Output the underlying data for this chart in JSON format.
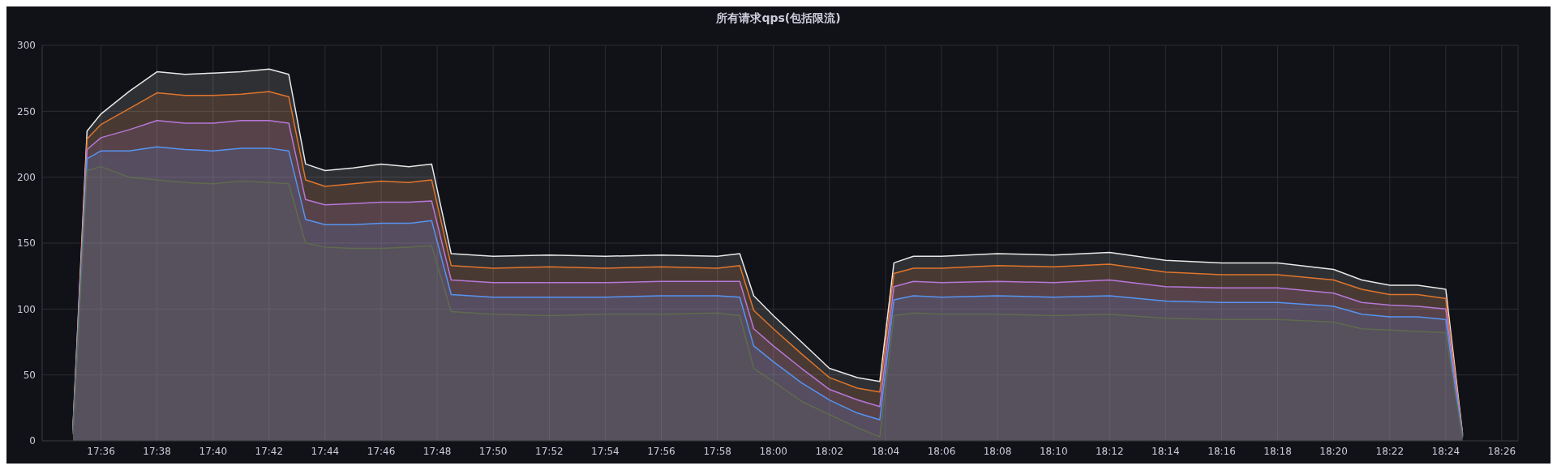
{
  "chart_data": {
    "type": "area",
    "title": "所有请求qps(包括限流)",
    "x": [
      17.5833,
      17.5917,
      17.6,
      17.6167,
      17.6333,
      17.65,
      17.6667,
      17.6833,
      17.7,
      17.7117,
      17.7217,
      17.7333,
      17.75,
      17.7667,
      17.7833,
      17.7967,
      17.8083,
      17.8333,
      17.8667,
      17.9,
      17.9333,
      17.9667,
      17.98,
      17.9883,
      18.0,
      18.0167,
      18.0333,
      18.05,
      18.0633,
      18.0717,
      18.0833,
      18.1,
      18.1333,
      18.1667,
      18.2,
      18.2333,
      18.2667,
      18.3,
      18.3333,
      18.35,
      18.3667,
      18.3833,
      18.4,
      18.405,
      18.41
    ],
    "series": [
      {
        "color": "#e8e8e8",
        "values": [
          10,
          235,
          248,
          265,
          280,
          278,
          279,
          280,
          282,
          278,
          210,
          205,
          207,
          210,
          208,
          210,
          142,
          140,
          141,
          140,
          141,
          140,
          142,
          110,
          95,
          75,
          55,
          48,
          45,
          135,
          140,
          140,
          142,
          141,
          143,
          137,
          135,
          135,
          130,
          122,
          118,
          118,
          115,
          60,
          5
        ]
      },
      {
        "color": "#e0752d",
        "values": [
          9,
          229,
          240,
          252,
          264,
          262,
          262,
          263,
          265,
          261,
          198,
          193,
          195,
          197,
          196,
          198,
          133,
          131,
          132,
          131,
          132,
          131,
          133,
          99,
          85,
          66,
          48,
          40,
          37,
          127,
          131,
          131,
          133,
          132,
          134,
          128,
          126,
          126,
          122,
          115,
          111,
          111,
          108,
          56,
          4
        ]
      },
      {
        "color": "#b877d9",
        "values": [
          8,
          221,
          230,
          236,
          243,
          241,
          241,
          243,
          243,
          241,
          183,
          179,
          180,
          181,
          181,
          182,
          122,
          120,
          120,
          120,
          121,
          121,
          121,
          85,
          72,
          55,
          39,
          31,
          26,
          117,
          121,
          120,
          121,
          120,
          122,
          117,
          116,
          116,
          112,
          105,
          103,
          102,
          100,
          51,
          4
        ]
      },
      {
        "color": "#5794f2",
        "values": [
          7,
          214,
          220,
          220,
          223,
          221,
          220,
          222,
          222,
          220,
          168,
          164,
          164,
          165,
          165,
          167,
          111,
          109,
          109,
          109,
          110,
          110,
          109,
          72,
          60,
          44,
          31,
          21,
          16,
          107,
          110,
          109,
          110,
          109,
          110,
          106,
          105,
          105,
          102,
          96,
          94,
          94,
          92,
          46,
          3
        ]
      },
      {
        "color": "#5f6b4e",
        "values": [
          5,
          205,
          208,
          200,
          198,
          196,
          195,
          197,
          196,
          195,
          150,
          147,
          146,
          146,
          147,
          148,
          98,
          96,
          95,
          96,
          96,
          97,
          95,
          55,
          45,
          30,
          20,
          10,
          3,
          95,
          97,
          96,
          96,
          95,
          96,
          93,
          92,
          92,
          90,
          85,
          84,
          83,
          82,
          40,
          2
        ]
      }
    ],
    "xlim": [
      17.565,
      18.443
    ],
    "xticks": [
      {
        "value": 17.6,
        "label": "17:36"
      },
      {
        "value": 17.6333,
        "label": "17:38"
      },
      {
        "value": 17.6667,
        "label": "17:40"
      },
      {
        "value": 17.7,
        "label": "17:42"
      },
      {
        "value": 17.7333,
        "label": "17:44"
      },
      {
        "value": 17.7667,
        "label": "17:46"
      },
      {
        "value": 17.8,
        "label": "17:48"
      },
      {
        "value": 17.8333,
        "label": "17:50"
      },
      {
        "value": 17.8667,
        "label": "17:52"
      },
      {
        "value": 17.9,
        "label": "17:54"
      },
      {
        "value": 17.9333,
        "label": "17:56"
      },
      {
        "value": 17.9667,
        "label": "17:58"
      },
      {
        "value": 18.0,
        "label": "18:00"
      },
      {
        "value": 18.0333,
        "label": "18:02"
      },
      {
        "value": 18.0667,
        "label": "18:04"
      },
      {
        "value": 18.1,
        "label": "18:06"
      },
      {
        "value": 18.1333,
        "label": "18:08"
      },
      {
        "value": 18.1667,
        "label": "18:10"
      },
      {
        "value": 18.2,
        "label": "18:12"
      },
      {
        "value": 18.2333,
        "label": "18:14"
      },
      {
        "value": 18.2667,
        "label": "18:16"
      },
      {
        "value": 18.3,
        "label": "18:18"
      },
      {
        "value": 18.3333,
        "label": "18:20"
      },
      {
        "value": 18.3667,
        "label": "18:22"
      },
      {
        "value": 18.4,
        "label": "18:24"
      },
      {
        "value": 18.4333,
        "label": "18:26"
      }
    ],
    "ylim": [
      0,
      300
    ],
    "yticks": [
      0,
      50,
      100,
      150,
      200,
      250,
      300
    ],
    "grid": true,
    "legend": false,
    "marker": "none",
    "line_style": "solid"
  }
}
